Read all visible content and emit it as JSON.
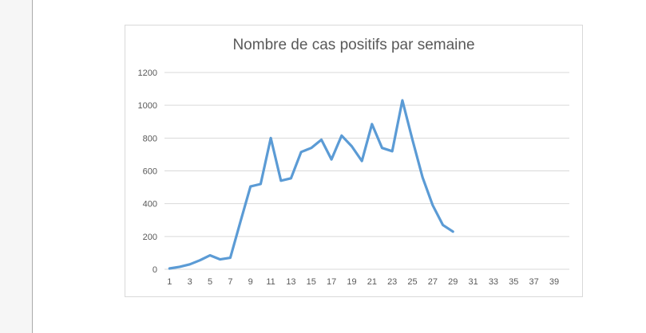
{
  "page": {
    "gutter_color": "#f6f6f6",
    "gutter_border_color": "#ababab",
    "background": "#ffffff"
  },
  "chart_data": {
    "type": "line",
    "title": "Nombre de cas positifs par semaine",
    "x": [
      1,
      2,
      3,
      4,
      5,
      6,
      7,
      8,
      9,
      10,
      11,
      12,
      13,
      14,
      15,
      16,
      17,
      18,
      19,
      20,
      21,
      22,
      23,
      24,
      25,
      26,
      27,
      28,
      29
    ],
    "values": [
      5,
      15,
      30,
      55,
      85,
      60,
      70,
      290,
      505,
      520,
      800,
      540,
      555,
      715,
      740,
      790,
      670,
      815,
      750,
      660,
      885,
      740,
      720,
      1030,
      790,
      560,
      390,
      270,
      230
    ],
    "x_axis_labels": [
      "1",
      "3",
      "5",
      "7",
      "9",
      "11",
      "13",
      "15",
      "17",
      "19",
      "21",
      "23",
      "25",
      "27",
      "29",
      "31",
      "33",
      "35",
      "37",
      "39"
    ],
    "x_slots": 40,
    "y_ticks": [
      0,
      200,
      400,
      600,
      800,
      1000,
      1200
    ],
    "ylim": [
      0,
      1200
    ],
    "xlabel": "",
    "ylabel": "",
    "legend_position": "none",
    "grid": true,
    "line_color": "#5B9BD5",
    "grid_color": "#D9D9D9",
    "axis_line_color": "#D9D9D9",
    "label_color": "#595959",
    "title_color": "#595959"
  }
}
